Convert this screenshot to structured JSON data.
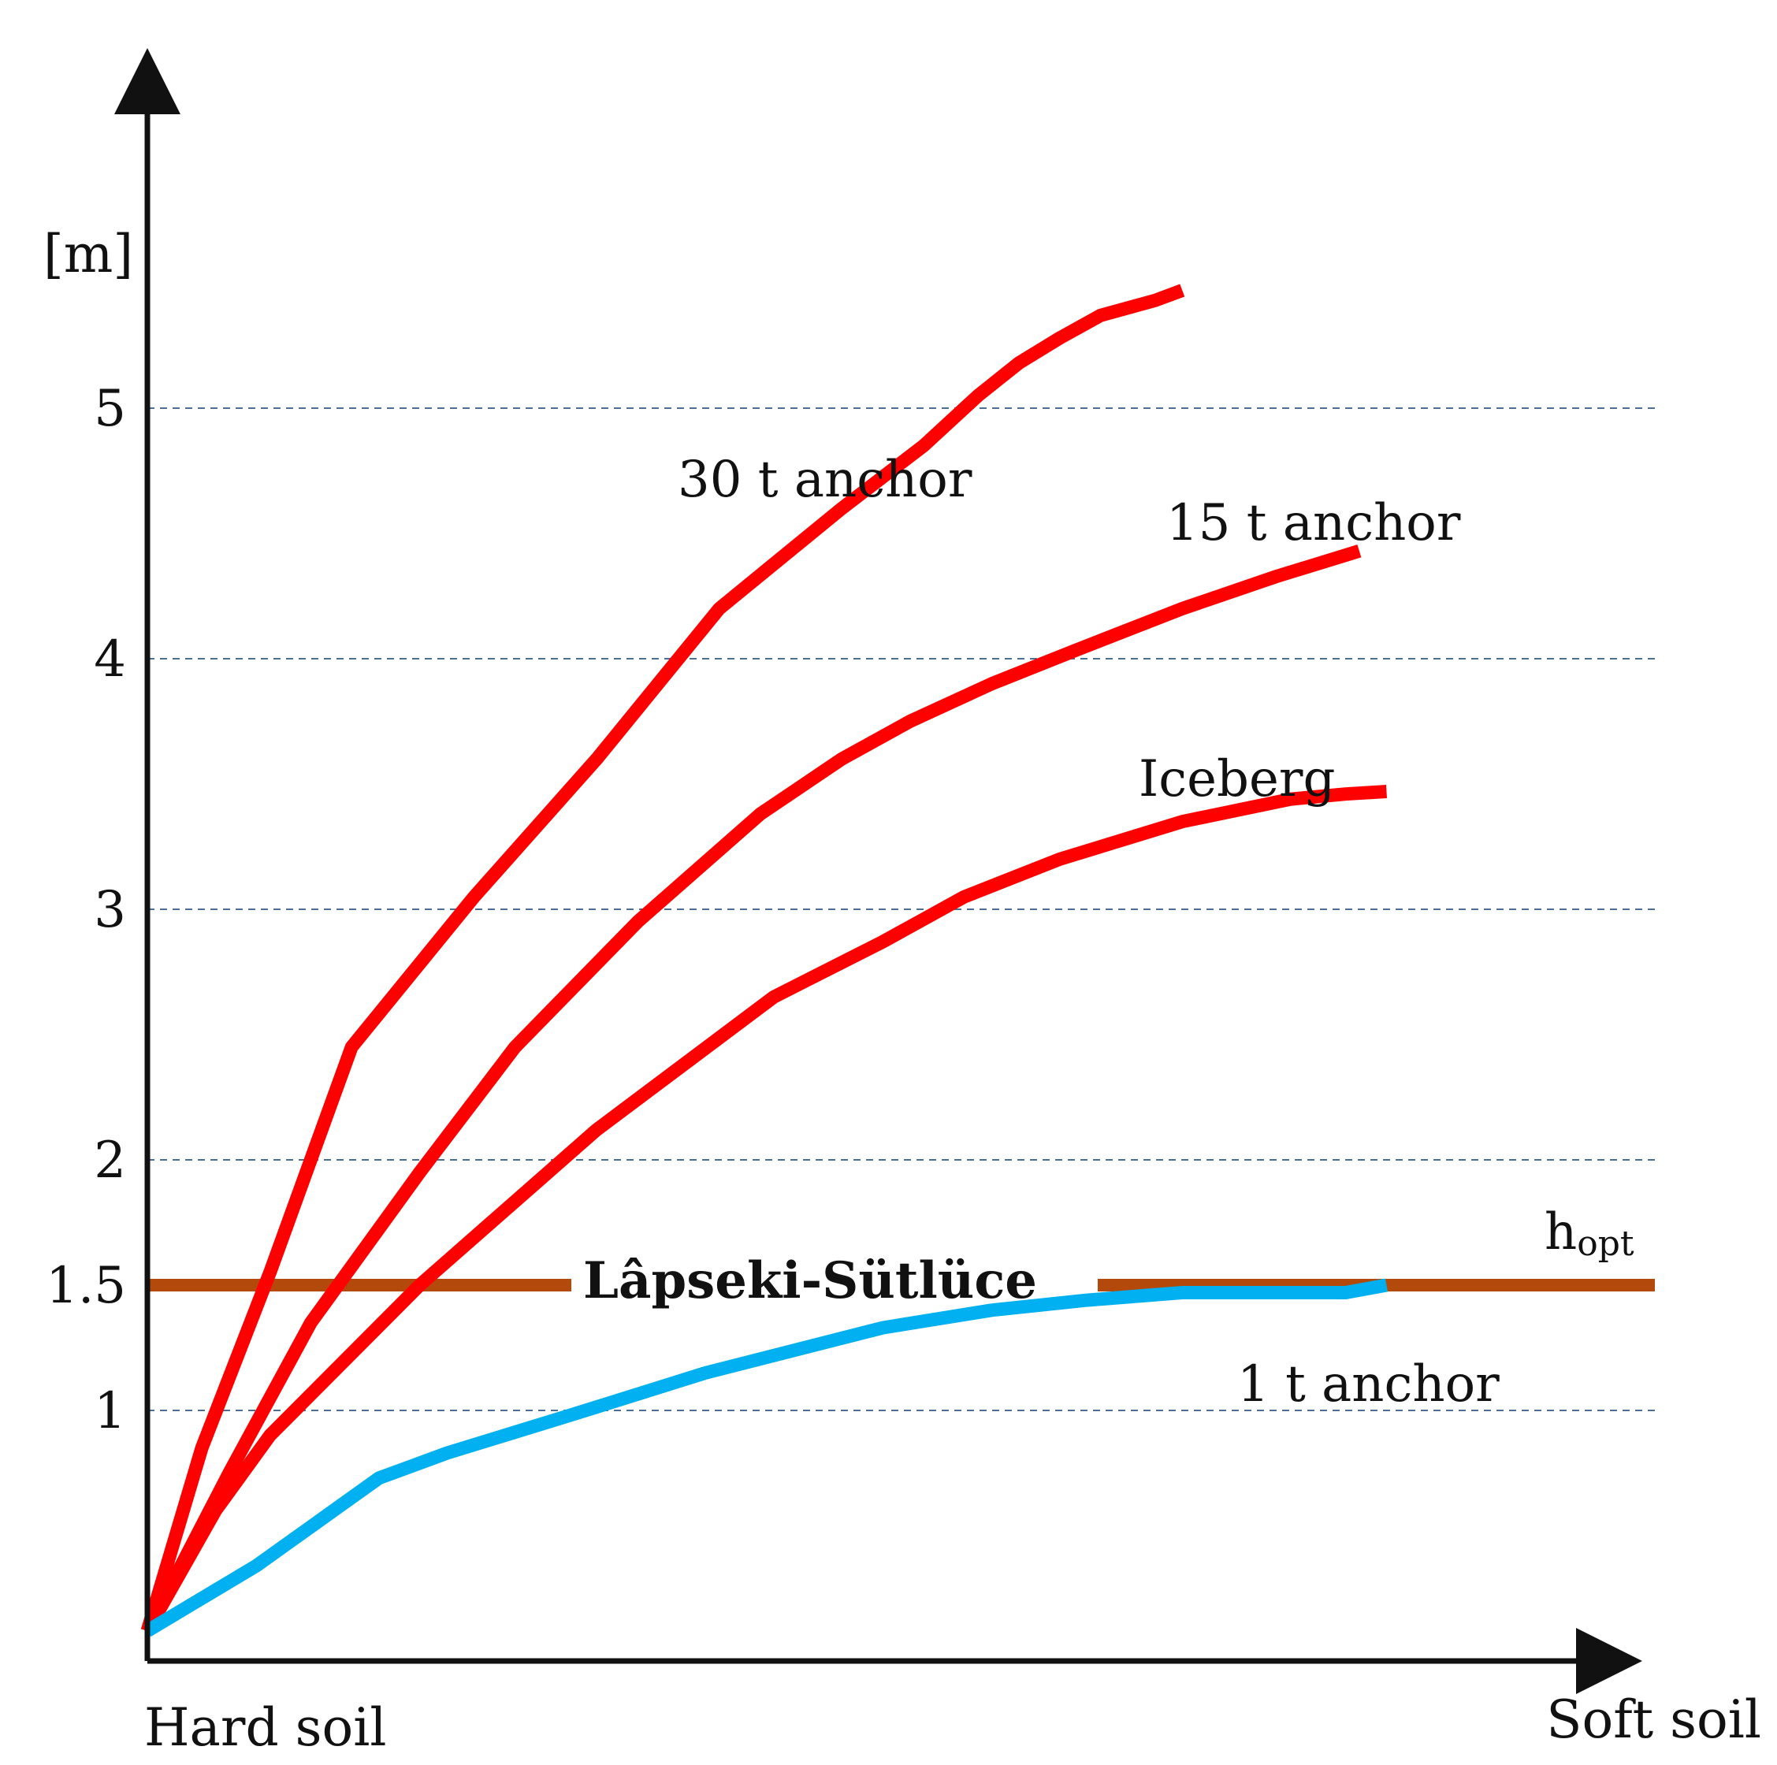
{
  "chart_data": {
    "type": "line",
    "title": "",
    "ylabel": "[m]",
    "xlabel_left": "Hard soil",
    "xlabel_right": "Soft soil",
    "x_range": [
      0,
      1
    ],
    "ylim": [
      0,
      6.1
    ],
    "y_ticks": [
      {
        "value": 1,
        "label": "1"
      },
      {
        "value": 1.5,
        "label": "1.5"
      },
      {
        "value": 2,
        "label": "2"
      },
      {
        "value": 3,
        "label": "3"
      },
      {
        "value": 4,
        "label": "4"
      },
      {
        "value": 5,
        "label": "5"
      }
    ],
    "gridlines": [
      1,
      2,
      3,
      4,
      5
    ],
    "reference_line": {
      "value": 1.5,
      "label": "Lâpseki-Sütlüce",
      "annotation_main": "h",
      "annotation_sub": "opt",
      "color": "#b34a0b"
    },
    "series": [
      {
        "name": "30 t anchor",
        "color": "#ff0000",
        "x": [
          0,
          0.04,
          0.09,
          0.15,
          0.24,
          0.33,
          0.42,
          0.51,
          0.57,
          0.61,
          0.64,
          0.67,
          0.7,
          0.74,
          0.76
        ],
        "y": [
          0.12,
          0.85,
          1.55,
          2.45,
          3.05,
          3.6,
          4.2,
          4.6,
          4.85,
          5.05,
          5.18,
          5.28,
          5.37,
          5.43,
          5.47
        ]
      },
      {
        "name": "15 t anchor",
        "color": "#ff0000",
        "x": [
          0,
          0.06,
          0.12,
          0.2,
          0.27,
          0.36,
          0.45,
          0.51,
          0.56,
          0.62,
          0.68,
          0.76,
          0.83,
          0.89
        ],
        "y": [
          0.12,
          0.75,
          1.35,
          1.95,
          2.45,
          2.95,
          3.38,
          3.6,
          3.75,
          3.9,
          4.03,
          4.2,
          4.33,
          4.43
        ]
      },
      {
        "name": "Iceberg",
        "color": "#ff0000",
        "x": [
          0,
          0.05,
          0.09,
          0.2,
          0.33,
          0.46,
          0.54,
          0.6,
          0.67,
          0.76,
          0.84,
          0.88,
          0.91
        ],
        "y": [
          0.12,
          0.6,
          0.9,
          1.5,
          2.12,
          2.65,
          2.87,
          3.05,
          3.2,
          3.35,
          3.44,
          3.46,
          3.47
        ]
      },
      {
        "name": "1 t anchor",
        "color": "#00b0f0",
        "x": [
          0,
          0.08,
          0.17,
          0.22,
          0.31,
          0.41,
          0.54,
          0.62,
          0.69,
          0.76,
          0.88,
          0.91
        ],
        "y": [
          0.12,
          0.38,
          0.73,
          0.83,
          0.98,
          1.15,
          1.33,
          1.4,
          1.44,
          1.47,
          1.47,
          1.5
        ]
      }
    ]
  }
}
